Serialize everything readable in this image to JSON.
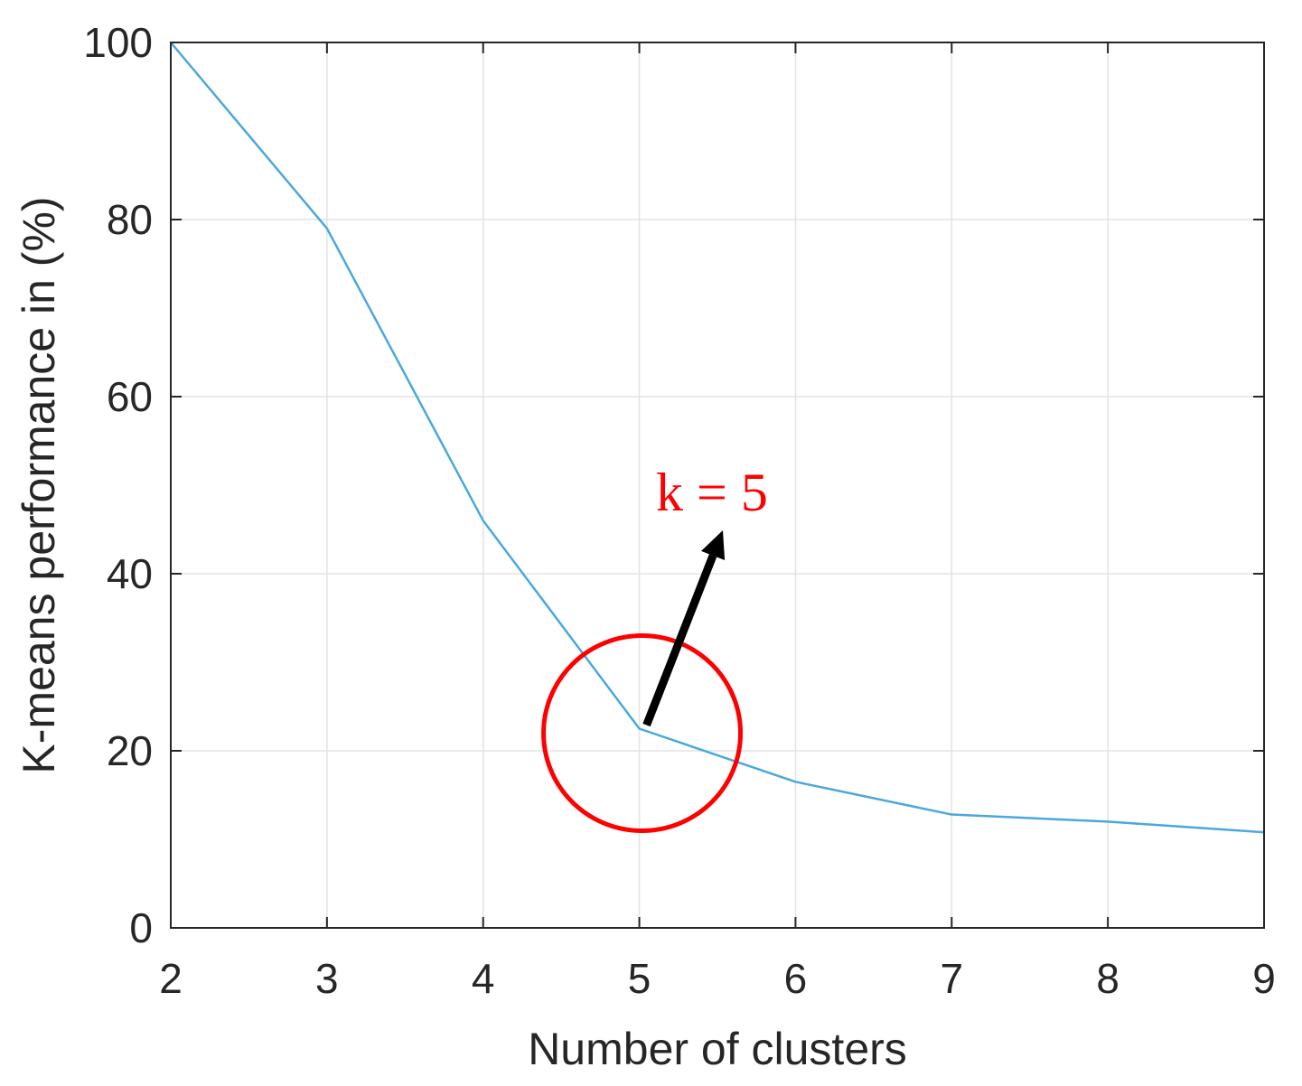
{
  "chart_data": {
    "type": "line",
    "title": "",
    "xlabel": "Number of clusters",
    "ylabel": "K-means performance in (%)",
    "xlim": [
      2,
      9
    ],
    "ylim": [
      0,
      100
    ],
    "xticks": [
      2,
      3,
      4,
      5,
      6,
      7,
      8,
      9
    ],
    "yticks": [
      0,
      20,
      40,
      60,
      80,
      100
    ],
    "grid": true,
    "series": [
      {
        "x": [
          2,
          3,
          4,
          5,
          6,
          7,
          8,
          9
        ],
        "y": [
          100,
          79,
          46,
          22.5,
          16.5,
          12.8,
          12,
          10.8
        ],
        "color": "#4aa8dc"
      }
    ],
    "annotation": {
      "text": "k = 5",
      "point": [
        5,
        22.5
      ],
      "color": "#ff0000",
      "arrow_color": "#000000"
    }
  }
}
